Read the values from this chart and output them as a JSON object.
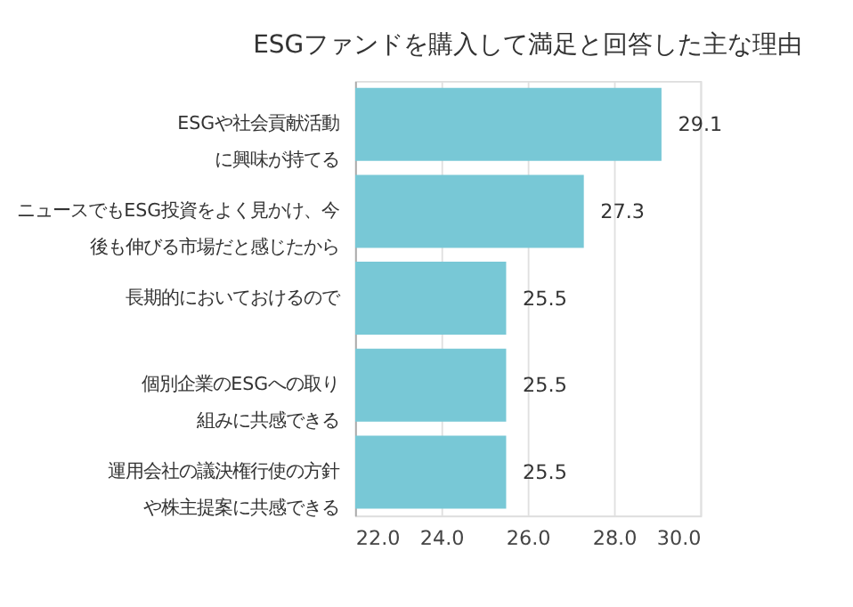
{
  "chart_data": {
    "type": "bar",
    "orientation": "horizontal",
    "title": "ESGファンドを購入して満足と回答した主な理由",
    "categories": [
      "ESGや社会貢献活動に興味が持てる",
      "ニュースでもESG投資をよく見かけ、今後も伸びる市場だと感じたから",
      "長期的においておけるので",
      "個別企業のESGへの取り組みに共感できる",
      "運用会社の議決権行使の方針や株主提案に共感できる"
    ],
    "values": [
      29.1,
      27.3,
      25.5,
      25.5,
      25.5
    ],
    "color": "#78c8d6",
    "xlim": [
      22,
      30
    ],
    "xticks": [
      {
        "value": 22,
        "label": "22.0"
      },
      {
        "value": 24,
        "label": "24.0"
      },
      {
        "value": 26,
        "label": "26.0"
      },
      {
        "value": 28,
        "label": "28.0"
      },
      {
        "value": 30,
        "label": "30.0"
      }
    ],
    "grid": "x",
    "data_labels": true
  }
}
